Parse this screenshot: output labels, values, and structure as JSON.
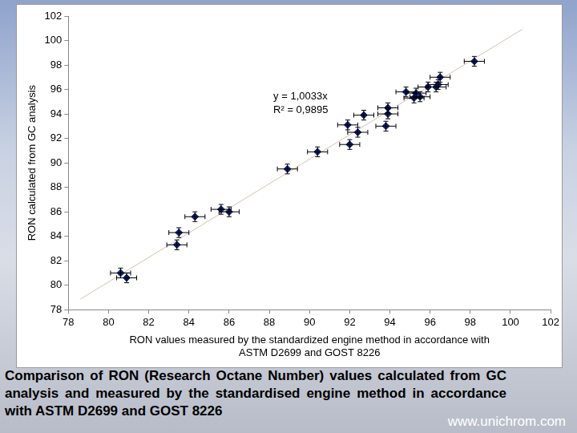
{
  "chart_data": {
    "type": "scatter",
    "xlabel": [
      "RON values measured by the standardized engine method in accordance with",
      "ASTM D2699 and GOST 8226"
    ],
    "ylabel": "RON calculated from GC analysis",
    "x": [
      80.6,
      80.9,
      83.4,
      83.5,
      84.3,
      85.6,
      86.0,
      88.9,
      90.4,
      92.0,
      91.9,
      92.4,
      92.7,
      93.8,
      93.9,
      93.9,
      94.8,
      95.2,
      95.3,
      95.5,
      95.9,
      96.4,
      96.5,
      96.3,
      98.2
    ],
    "values": [
      81.0,
      80.6,
      83.3,
      84.3,
      85.6,
      86.2,
      86.0,
      89.5,
      90.9,
      91.5,
      93.1,
      92.5,
      93.9,
      93.0,
      94.0,
      94.5,
      95.8,
      95.3,
      95.7,
      95.4,
      96.2,
      96.4,
      97.0,
      96.2,
      98.3
    ],
    "x_error": 0.5,
    "y_error": 0.4,
    "color": "#12206e",
    "marker": "diamond",
    "trendline": {
      "x": [
        78.6,
        100.6
      ],
      "values": [
        78.86,
        100.93
      ],
      "color": "#d2c2b0"
    },
    "annotations": [
      "y = 1,0033x",
      "R² = 0,9895"
    ],
    "xlim": [
      78,
      102
    ],
    "ylim": [
      78,
      102
    ],
    "xticks": [
      78,
      80,
      82,
      84,
      86,
      88,
      90,
      92,
      94,
      96,
      98,
      100,
      102
    ],
    "yticks": [
      78,
      80,
      82,
      84,
      86,
      88,
      90,
      92,
      94,
      96,
      98,
      100,
      102
    ],
    "grid": false
  },
  "caption": "Comparison of RON (Research Octane Number) values calculated from GC analysis and measured by the standardised engine method in accordance with ASTM D2699 and GOST 8226",
  "website": "www.unichrom.com"
}
